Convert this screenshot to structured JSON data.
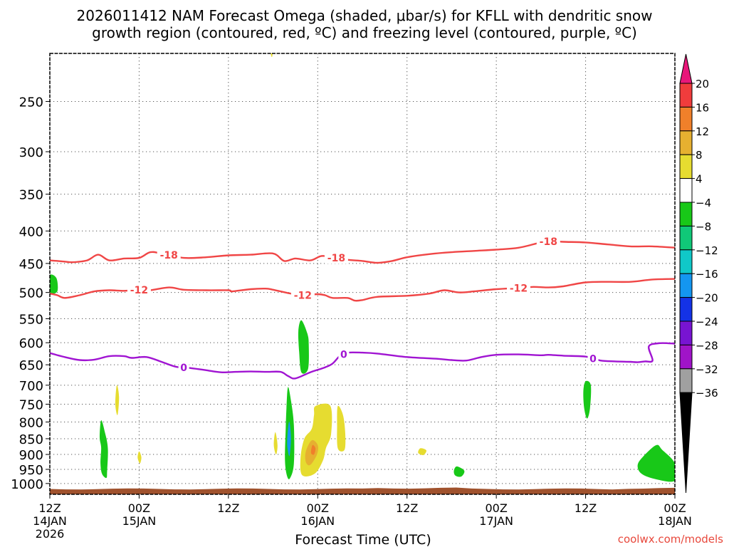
{
  "chart_data": {
    "type": "heatmap",
    "title_line1": "2026011412 NAM Forecast Omega (shaded, μbar/s) for KFLL with dendritic snow",
    "title_line2": "growth region (contoured, red, ºC) and freezing level (contoured, purple, ºC)",
    "xlabel": "Forecast Time (UTC)",
    "ylabel": "",
    "credit": "coolwx.com/models",
    "x_hours_range": [
      0,
      84
    ],
    "y_pressure_range_hPa": [
      1040,
      210
    ],
    "y_ticks": [
      250,
      300,
      350,
      400,
      450,
      500,
      550,
      600,
      650,
      700,
      750,
      800,
      850,
      900,
      950,
      1000
    ],
    "x_ticks": [
      {
        "h": 0,
        "label": "12Z",
        "sub": "14JAN",
        "sub2": "2026"
      },
      {
        "h": 12,
        "label": "00Z",
        "sub": "15JAN",
        "sub2": ""
      },
      {
        "h": 24,
        "label": "12Z",
        "sub": "",
        "sub2": ""
      },
      {
        "h": 36,
        "label": "00Z",
        "sub": "16JAN",
        "sub2": ""
      },
      {
        "h": 48,
        "label": "12Z",
        "sub": "",
        "sub2": ""
      },
      {
        "h": 60,
        "label": "00Z",
        "sub": "17JAN",
        "sub2": ""
      },
      {
        "h": 72,
        "label": "12Z",
        "sub": "",
        "sub2": ""
      },
      {
        "h": 84,
        "label": "00Z",
        "sub": "18JAN",
        "sub2": ""
      }
    ],
    "colorbar": {
      "labels": [
        "20",
        "16",
        "12",
        "8",
        "4",
        "−4",
        "−8",
        "−12",
        "−16",
        "−20",
        "−24",
        "−28",
        "−32",
        "−36"
      ],
      "colors": [
        "#e8177a",
        "#f03c3c",
        "#f0802a",
        "#e6b030",
        "#e6dc30",
        "#ffffff",
        "#18c818",
        "#10c878",
        "#10c8c8",
        "#1496f0",
        "#1432e6",
        "#7814d2",
        "#a014c8",
        "#a0a0a0",
        "#000000"
      ]
    },
    "contours": [
      {
        "name": "-18C isotherm",
        "label": "-18",
        "color": "#f04646",
        "points": [
          [
            0,
            445
          ],
          [
            2,
            447
          ],
          [
            3,
            448
          ],
          [
            5,
            445
          ],
          [
            6.5,
            436
          ],
          [
            8,
            445
          ],
          [
            10,
            442
          ],
          [
            12,
            441
          ],
          [
            13.5,
            432
          ],
          [
            15,
            434
          ],
          [
            18,
            441
          ],
          [
            21,
            440
          ],
          [
            24,
            437
          ],
          [
            27,
            436
          ],
          [
            30,
            434
          ],
          [
            31.5,
            446
          ],
          [
            33,
            442
          ],
          [
            35,
            445
          ],
          [
            36.5,
            438
          ],
          [
            38,
            440
          ],
          [
            40,
            444
          ],
          [
            42,
            446
          ],
          [
            44,
            449
          ],
          [
            46,
            446
          ],
          [
            48,
            440
          ],
          [
            51,
            435
          ],
          [
            54,
            432
          ],
          [
            57,
            430
          ],
          [
            60,
            428
          ],
          [
            63,
            425
          ],
          [
            66,
            417
          ],
          [
            67.5,
            415
          ],
          [
            69,
            416
          ],
          [
            72,
            417
          ],
          [
            75,
            420
          ],
          [
            78,
            423
          ],
          [
            81,
            423
          ],
          [
            84,
            425
          ]
        ],
        "labels_at": [
          16,
          38.5,
          67
        ]
      },
      {
        "name": "-12C isotherm",
        "label": "-12",
        "color": "#f04646",
        "points": [
          [
            0,
            502
          ],
          [
            1,
            505
          ],
          [
            2,
            510
          ],
          [
            4,
            505
          ],
          [
            6,
            498
          ],
          [
            8,
            496
          ],
          [
            10,
            497
          ],
          [
            12,
            495
          ],
          [
            13,
            497
          ],
          [
            16,
            491
          ],
          [
            18,
            495
          ],
          [
            21,
            496
          ],
          [
            24,
            496
          ],
          [
            24.5,
            498
          ],
          [
            27,
            494
          ],
          [
            29,
            493
          ],
          [
            30,
            495
          ],
          [
            32,
            501
          ],
          [
            34,
            505
          ],
          [
            36,
            503
          ],
          [
            37,
            505
          ],
          [
            38,
            510
          ],
          [
            40,
            510
          ],
          [
            41,
            515
          ],
          [
            42,
            514
          ],
          [
            44,
            508
          ],
          [
            48,
            506
          ],
          [
            51,
            502
          ],
          [
            53,
            496
          ],
          [
            55,
            500
          ],
          [
            57,
            498
          ],
          [
            60,
            494
          ],
          [
            63,
            492
          ],
          [
            65,
            490
          ],
          [
            67,
            491
          ],
          [
            69,
            489
          ],
          [
            72,
            482
          ],
          [
            75,
            481
          ],
          [
            78,
            481
          ],
          [
            81,
            477
          ],
          [
            84,
            476
          ]
        ],
        "labels_at": [
          12,
          34,
          63
        ]
      },
      {
        "name": "0C freezing level",
        "label": "0",
        "color": "#a014d2",
        "points": [
          [
            0,
            623
          ],
          [
            2,
            632
          ],
          [
            4,
            639
          ],
          [
            6,
            638
          ],
          [
            8,
            630
          ],
          [
            10,
            630
          ],
          [
            11,
            634
          ],
          [
            13,
            632
          ],
          [
            15,
            643
          ],
          [
            17,
            655
          ],
          [
            19,
            658
          ],
          [
            21,
            663
          ],
          [
            23,
            668
          ],
          [
            25,
            667
          ],
          [
            27,
            666
          ],
          [
            29,
            667
          ],
          [
            31,
            667
          ],
          [
            32,
            677
          ],
          [
            33,
            683
          ],
          [
            35,
            668
          ],
          [
            37,
            656
          ],
          [
            38,
            647
          ],
          [
            39,
            629
          ],
          [
            40,
            622
          ],
          [
            42,
            622
          ],
          [
            44,
            624
          ],
          [
            48,
            632
          ],
          [
            52,
            636
          ],
          [
            54,
            639
          ],
          [
            56,
            640
          ],
          [
            58,
            632
          ],
          [
            60,
            627
          ],
          [
            63,
            626
          ],
          [
            66,
            628
          ],
          [
            67,
            627
          ],
          [
            69,
            629
          ],
          [
            72,
            631
          ],
          [
            74,
            640
          ],
          [
            76,
            642
          ],
          [
            78,
            643
          ],
          [
            79,
            644
          ],
          [
            80,
            642
          ],
          [
            81,
            640
          ],
          [
            80.5,
            608
          ],
          [
            82,
            601
          ],
          [
            84,
            602
          ]
        ],
        "labels_at": [
          18,
          39.5,
          73
        ]
      }
    ],
    "omega_blobs": [
      {
        "name": "upper thin yellow",
        "color": "#e6dc30",
        "points": [
          [
            29.8,
            186
          ],
          [
            30.2,
            190
          ],
          [
            29.9,
            212
          ],
          [
            29.6,
            205
          ]
        ]
      },
      {
        "name": "low-level green 14Jan",
        "color": "#18c818",
        "points": [
          [
            6.9,
            795
          ],
          [
            7.4,
            830
          ],
          [
            7.8,
            880
          ],
          [
            7.7,
            955
          ],
          [
            7.6,
            980
          ],
          [
            7.0,
            965
          ],
          [
            6.8,
            928
          ],
          [
            6.9,
            878
          ],
          [
            6.7,
            845
          ]
        ]
      },
      {
        "name": "thin yellow 14Jan",
        "color": "#e6dc30",
        "points": [
          [
            9.0,
            700
          ],
          [
            9.3,
            730
          ],
          [
            9.1,
            780
          ],
          [
            8.8,
            750
          ]
        ]
      },
      {
        "name": "small yellow 15Jan",
        "color": "#e6dc30",
        "points": [
          [
            12.0,
            890
          ],
          [
            12.3,
            910
          ],
          [
            12.1,
            930
          ],
          [
            11.8,
            910
          ]
        ]
      },
      {
        "name": "edge green",
        "color": "#18c818",
        "points": [
          [
            0,
            470
          ],
          [
            0.9,
            475
          ],
          [
            1.0,
            498
          ],
          [
            0,
            500
          ]
        ]
      },
      {
        "name": "mid-level green 15Jan",
        "color": "#18c818",
        "points": [
          [
            33.8,
            553
          ],
          [
            34.6,
            580
          ],
          [
            34.8,
            605
          ],
          [
            34.7,
            660
          ],
          [
            33.8,
            668
          ],
          [
            33.5,
            620
          ],
          [
            33.4,
            575
          ]
        ]
      },
      {
        "name": "green column",
        "color": "#18c818",
        "points": [
          [
            32.0,
            705
          ],
          [
            32.4,
            740
          ],
          [
            32.8,
            810
          ],
          [
            32.8,
            930
          ],
          [
            32.3,
            980
          ],
          [
            31.9,
            975
          ],
          [
            31.6,
            920
          ],
          [
            31.7,
            820
          ],
          [
            31.8,
            760
          ]
        ]
      },
      {
        "name": "blue core",
        "color": "#1496f0",
        "points": [
          [
            32.2,
            800
          ],
          [
            32.4,
            850
          ],
          [
            32.2,
            905
          ],
          [
            31.9,
            870
          ],
          [
            32.0,
            820
          ]
        ]
      },
      {
        "name": "yellow left narrow",
        "color": "#e6dc30",
        "points": [
          [
            30.3,
            830
          ],
          [
            30.6,
            870
          ],
          [
            30.4,
            900
          ],
          [
            30.1,
            870
          ]
        ]
      },
      {
        "name": "yellow large",
        "color": "#e6dc30",
        "points": [
          [
            35.7,
            755
          ],
          [
            37.7,
            755
          ],
          [
            37.8,
            835
          ],
          [
            37.1,
            880
          ],
          [
            36.7,
            920
          ],
          [
            35.6,
            965
          ],
          [
            33.9,
            970
          ],
          [
            33.7,
            910
          ],
          [
            34.2,
            850
          ],
          [
            35.2,
            820
          ],
          [
            35.5,
            780
          ]
        ]
      },
      {
        "name": "yellow right",
        "color": "#e6dc30",
        "points": [
          [
            38.7,
            755
          ],
          [
            39.4,
            780
          ],
          [
            39.7,
            835
          ],
          [
            39.6,
            885
          ],
          [
            38.7,
            880
          ],
          [
            38.6,
            810
          ]
        ]
      },
      {
        "name": "orange core",
        "color": "#e6b030",
        "points": [
          [
            35.2,
            855
          ],
          [
            36.0,
            870
          ],
          [
            35.9,
            900
          ],
          [
            35.0,
            935
          ],
          [
            34.4,
            925
          ],
          [
            34.4,
            890
          ]
        ]
      },
      {
        "name": "tiny yellow 16Jan",
        "color": "#e6dc30",
        "points": [
          [
            49.8,
            880
          ],
          [
            50.6,
            887
          ],
          [
            50.2,
            902
          ],
          [
            49.5,
            895
          ]
        ]
      },
      {
        "name": "small green 16Jan",
        "color": "#18c818",
        "points": [
          [
            54.7,
            940
          ],
          [
            55.7,
            955
          ],
          [
            55.3,
            975
          ],
          [
            54.5,
            972
          ],
          [
            54.3,
            955
          ]
        ]
      },
      {
        "name": "green 17Jan 12Z",
        "color": "#18c818",
        "points": [
          [
            72.0,
            690
          ],
          [
            72.7,
            700
          ],
          [
            72.6,
            760
          ],
          [
            72.2,
            790
          ],
          [
            71.8,
            760
          ],
          [
            71.7,
            715
          ]
        ]
      },
      {
        "name": "green 17Jan low",
        "color": "#18c818",
        "points": [
          [
            81.5,
            870
          ],
          [
            82.3,
            885
          ],
          [
            84,
            930
          ],
          [
            84,
            990
          ],
          [
            81.5,
            985
          ],
          [
            79.5,
            965
          ],
          [
            79.0,
            935
          ],
          [
            79.8,
            905
          ]
        ]
      },
      {
        "name": "orange small 16Jan",
        "color": "#f0802a",
        "points": [
          [
            35.3,
            870
          ],
          [
            35.7,
            880
          ],
          [
            35.5,
            900
          ],
          [
            35.1,
            895
          ]
        ]
      }
    ],
    "terrain": {
      "color": "#a0522d",
      "top_hPa": 1020
    }
  }
}
